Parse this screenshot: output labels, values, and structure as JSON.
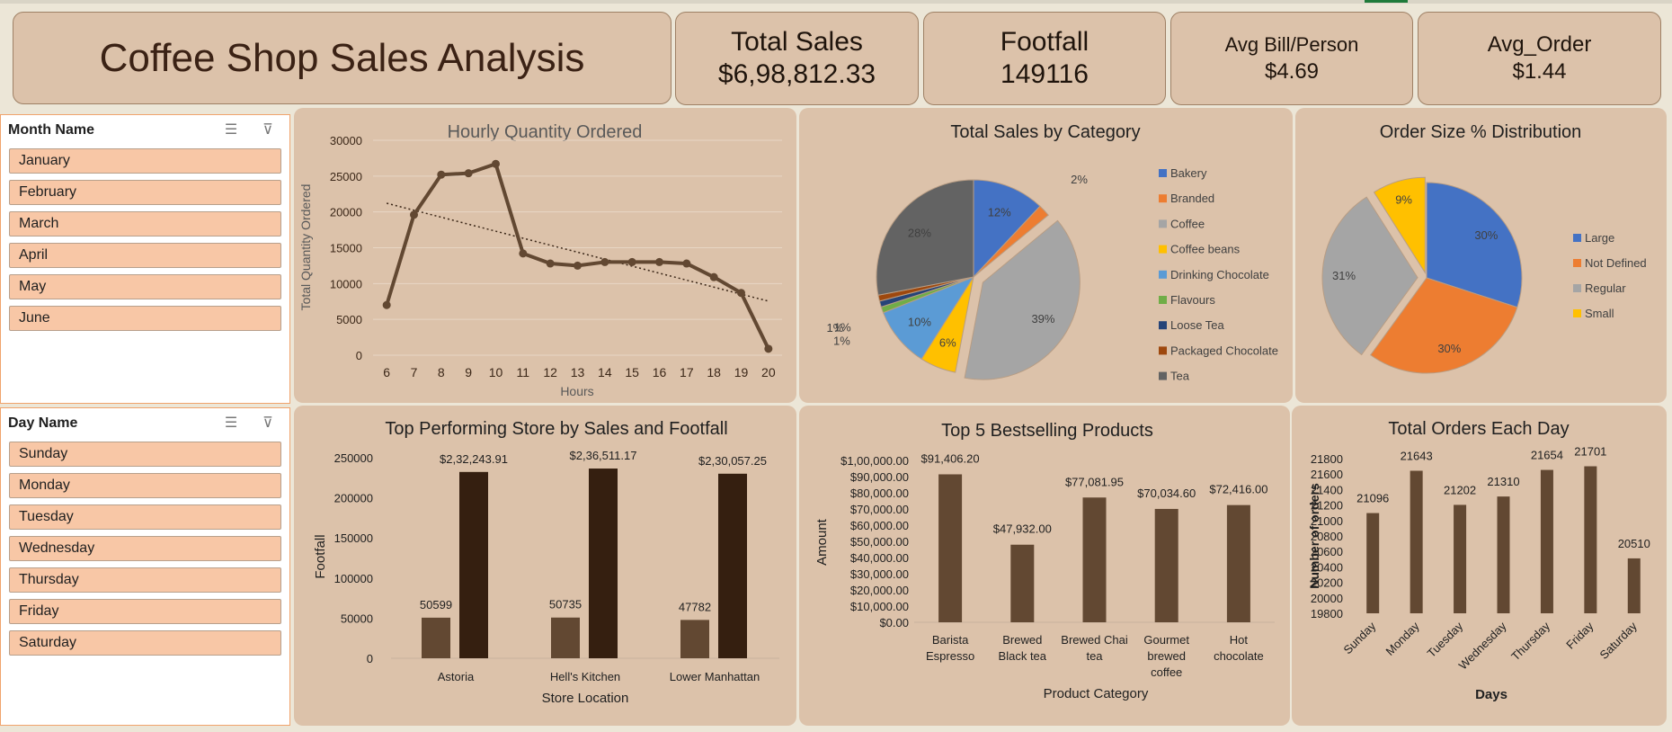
{
  "header": {
    "title": "Coffee Shop Sales Analysis",
    "kpis": [
      {
        "label": "Total Sales",
        "value": "$6,98,812.33"
      },
      {
        "label": "Footfall",
        "value": "149116"
      },
      {
        "label": "Avg Bill/Person",
        "value": "$4.69"
      },
      {
        "label": "Avg_Order",
        "value": "$1.44"
      }
    ]
  },
  "slicers": {
    "month": {
      "title": "Month Name",
      "items": [
        "January",
        "February",
        "March",
        "April",
        "May",
        "June"
      ]
    },
    "day": {
      "title": "Day Name",
      "items": [
        "Sunday",
        "Monday",
        "Tuesday",
        "Wednesday",
        "Thursday",
        "Friday",
        "Saturday"
      ]
    }
  },
  "colors": {
    "bar": "#624832",
    "bar_dark": "#351f10",
    "line": "#624832"
  },
  "chart_data": [
    {
      "type": "line",
      "title": "Hourly Quantity Ordered",
      "xlabel": "Hours",
      "ylabel": "Total Quantity Ordered",
      "x": [
        6,
        7,
        8,
        9,
        10,
        11,
        12,
        13,
        14,
        15,
        16,
        17,
        18,
        19,
        20
      ],
      "values": [
        7000,
        19600,
        25200,
        25400,
        26700,
        14200,
        12800,
        12500,
        13000,
        13000,
        13000,
        12800,
        10900,
        8700,
        900
      ],
      "ylim": [
        0,
        30000
      ],
      "yticks": [
        "0",
        "5000",
        "10000",
        "15000",
        "20000",
        "25000",
        "30000"
      ],
      "trendline": true,
      "grid": true
    },
    {
      "type": "pie",
      "title": "Total Sales by Category",
      "legend_position": "right",
      "labels": [
        "Bakery",
        "Branded",
        "Coffee",
        "Coffee beans",
        "Drinking Chocolate",
        "Flavours",
        "Loose Tea",
        "Packaged Chocolate",
        "Tea"
      ],
      "values": [
        12,
        2,
        39,
        6,
        10,
        1,
        1,
        1,
        28
      ],
      "data_labels": [
        "12%",
        "2%",
        "39%",
        "6%",
        "10%",
        "1%",
        "1%",
        "1%",
        "28%"
      ],
      "colors": [
        "#4472c4",
        "#ed7d31",
        "#a5a5a5",
        "#ffc000",
        "#5b9bd5",
        "#70ad47",
        "#264478",
        "#9e480e",
        "#636363"
      ]
    },
    {
      "type": "pie",
      "title": "Order Size % Distribution",
      "legend_position": "right",
      "labels": [
        "Large",
        "Not Defined",
        "Regular",
        "Small"
      ],
      "values": [
        30,
        30,
        31,
        9
      ],
      "data_labels": [
        "30%",
        "30%",
        "31%",
        "9%"
      ],
      "colors": [
        "#4472c4",
        "#ed7d31",
        "#a5a5a5",
        "#ffc000"
      ]
    },
    {
      "type": "bar",
      "title": "Top Performing Store by Sales and Footfall",
      "xlabel": "Store Location",
      "ylabel": "Footfall",
      "categories": [
        "Astoria",
        "Hell's Kitchen",
        "Lower Manhattan"
      ],
      "series": [
        {
          "values": [
            50599,
            50735,
            47782
          ],
          "labels": [
            "50599",
            "50735",
            "47782"
          ]
        },
        {
          "values": [
            232243.91,
            236511.17,
            230057.25
          ],
          "labels": [
            "$2,32,243.91",
            "$2,36,511.17",
            "$2,30,057.25"
          ]
        }
      ],
      "ylim": [
        0,
        250000
      ],
      "yticks": [
        "0",
        "50000",
        "100000",
        "150000",
        "200000",
        "250000"
      ]
    },
    {
      "type": "bar",
      "title": "Top 5 Bestselling Products",
      "xlabel": "Product Category",
      "ylabel": "Amount",
      "categories": [
        [
          "Barista",
          "Espresso"
        ],
        [
          "Brewed",
          "Black tea"
        ],
        [
          "Brewed Chai",
          "tea"
        ],
        [
          "Gourmet",
          "brewed",
          "coffee"
        ],
        [
          "Hot",
          "chocolate"
        ]
      ],
      "values": [
        91406.2,
        47932.0,
        77081.95,
        70034.6,
        72416.0
      ],
      "value_labels": [
        "$91,406.20",
        "$47,932.00",
        "$77,081.95",
        "$70,034.60",
        "$72,416.00"
      ],
      "ylim": [
        0,
        100000
      ],
      "yticks": [
        "$0.00",
        "$10,000.00",
        "$20,000.00",
        "$30,000.00",
        "$40,000.00",
        "$50,000.00",
        "$60,000.00",
        "$70,000.00",
        "$80,000.00",
        "$90,000.00",
        "$1,00,000.00"
      ]
    },
    {
      "type": "bar",
      "title": "Total Orders Each Day",
      "xlabel": "Days",
      "ylabel": "Number of orders",
      "categories": [
        "Sunday",
        "Monday",
        "Tuesday",
        "Wednesday",
        "Thursday",
        "Friday",
        "Saturday"
      ],
      "values": [
        21096,
        21643,
        21202,
        21310,
        21654,
        21701,
        20510
      ],
      "value_labels": [
        "21096",
        "21643",
        "21202",
        "21310",
        "21654",
        "21701",
        "20510"
      ],
      "ylim": [
        19800,
        21800
      ],
      "yticks": [
        "19800",
        "20000",
        "20200",
        "20400",
        "20600",
        "20800",
        "21000",
        "21200",
        "21400",
        "21600",
        "21800"
      ]
    }
  ]
}
